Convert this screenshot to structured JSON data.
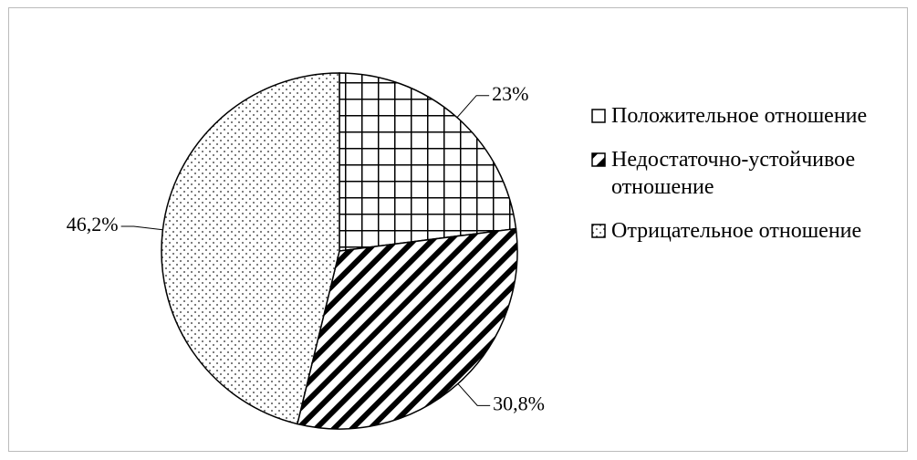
{
  "chart_data": {
    "type": "pie",
    "categories": [
      "Положительное отношение",
      "Недостаточно-устойчивое отношение",
      "Отрицательное отношение"
    ],
    "values": [
      23,
      30.8,
      46.2
    ],
    "value_labels": [
      "23%",
      "30,8%",
      "46,2%"
    ],
    "patterns": [
      "grid",
      "diagonal",
      "dots"
    ],
    "legend": "right"
  }
}
